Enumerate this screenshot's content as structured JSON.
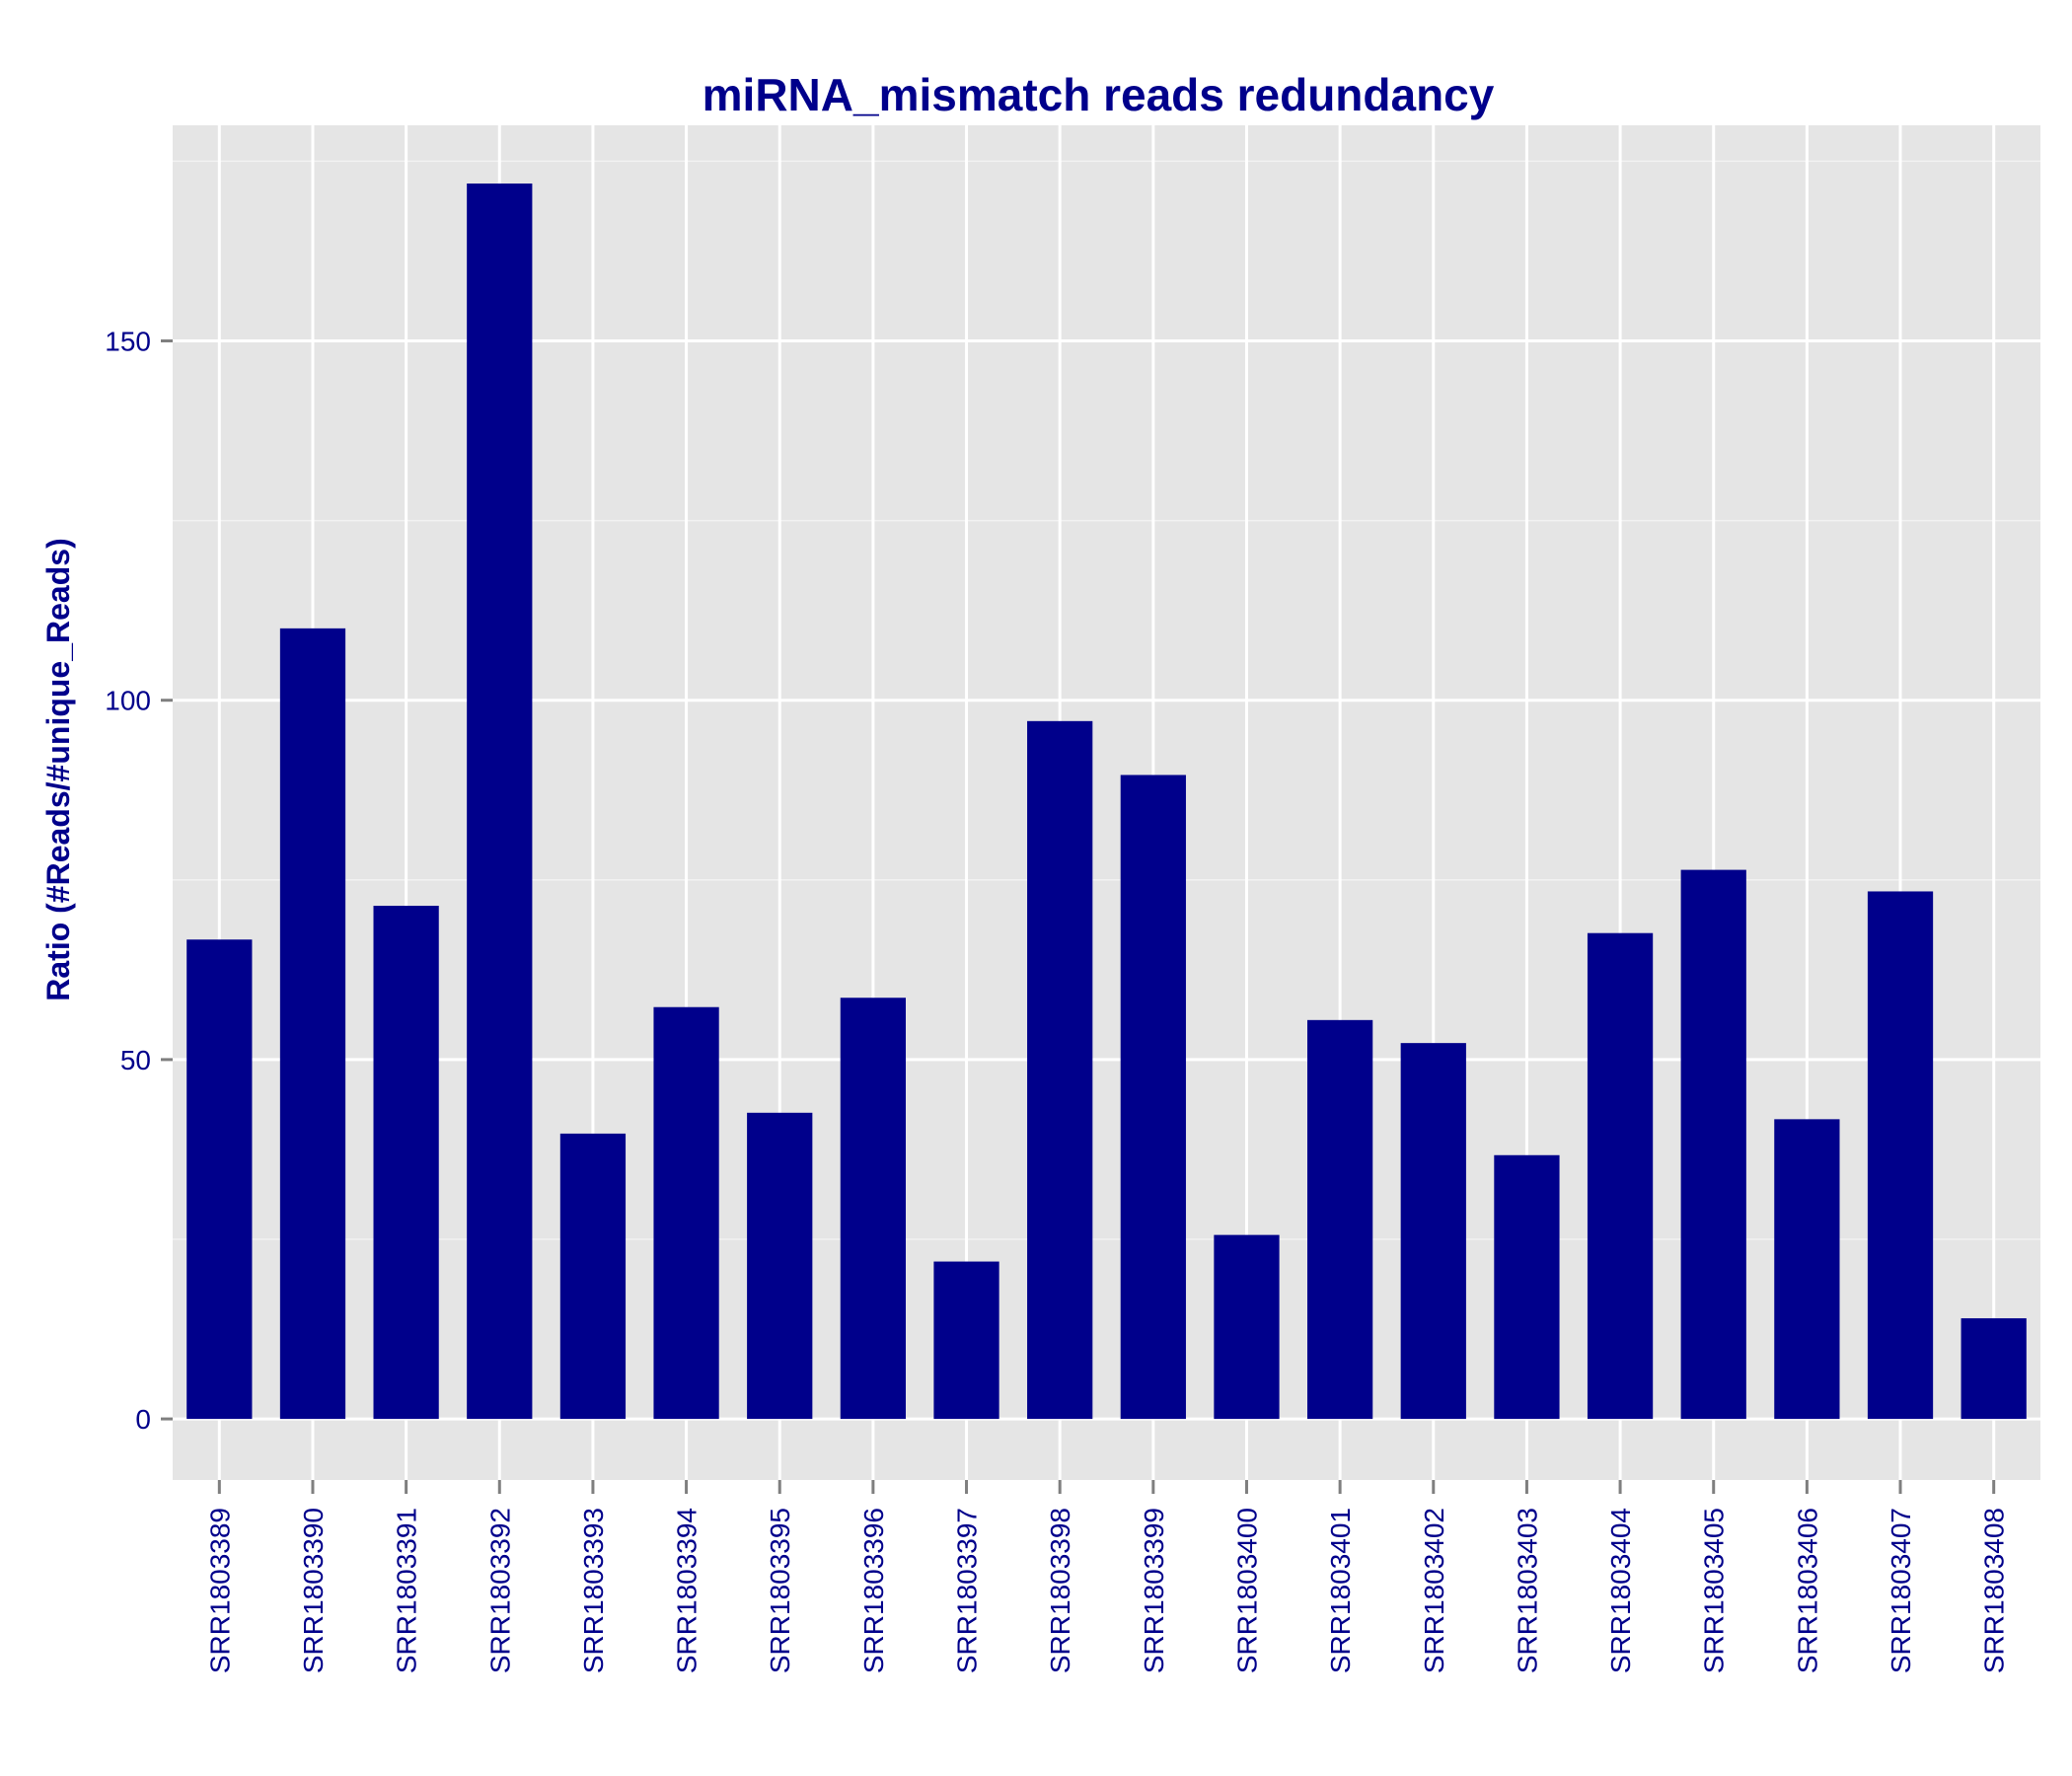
{
  "chart_data": {
    "type": "bar",
    "title": "miRNA_mismatch reads redundancy",
    "xlabel": "",
    "ylabel": "Ratio (#Reads/#unique_Reads)",
    "categories": [
      "SRR1803389",
      "SRR1803390",
      "SRR1803391",
      "SRR1803392",
      "SRR1803393",
      "SRR1803394",
      "SRR1803395",
      "SRR1803396",
      "SRR1803397",
      "SRR1803398",
      "SRR1803399",
      "SRR1803400",
      "SRR1803401",
      "SRR1803402",
      "SRR1803403",
      "SRR1803404",
      "SRR1803405",
      "SRR1803406",
      "SRR1803407",
      "SRR1803408"
    ],
    "values": [
      66.7,
      110,
      71.4,
      171.9,
      39.7,
      57.3,
      42.6,
      58.6,
      21.9,
      97.1,
      89.6,
      25.6,
      55.5,
      52.3,
      36.7,
      67.6,
      76.4,
      41.7,
      73.4,
      14
    ],
    "ylim": [
      -8.5,
      180
    ],
    "yticks": [
      0,
      50,
      100,
      150
    ],
    "ytick_labels": [
      "0",
      "50",
      "100",
      "150"
    ],
    "grid": true,
    "bar_color": "#00008B",
    "panel_color": "#E5E5E5",
    "text_color": "#00008B"
  }
}
